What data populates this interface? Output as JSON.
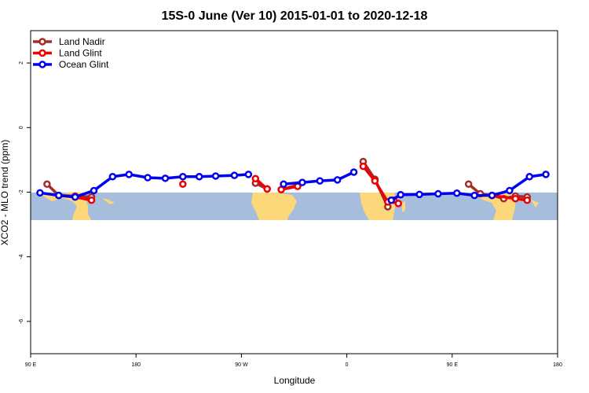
{
  "chart_data": {
    "type": "line",
    "title": "15S-0 June (Ver 10)   2015-01-01 to 2020-12-18",
    "xlabel": "Longitude",
    "ylabel": "XCO2 - MLO trend (ppm)",
    "xlim": [
      90,
      540
    ],
    "ylim": [
      -7,
      3
    ],
    "xticks": [
      {
        "value": 90,
        "label": "90 E"
      },
      {
        "value": 180,
        "label": "180"
      },
      {
        "value": 270,
        "label": "90 W"
      },
      {
        "value": 360,
        "label": "0"
      },
      {
        "value": 450,
        "label": "90 E"
      },
      {
        "value": 540,
        "label": "180"
      }
    ],
    "yticks": [
      {
        "value": 2,
        "label": "2"
      },
      {
        "value": 0,
        "label": "0"
      },
      {
        "value": -2,
        "label": "-2"
      },
      {
        "value": -4,
        "label": "-4"
      },
      {
        "value": -6,
        "label": "-6"
      }
    ],
    "grid": false,
    "legend_position": "top-left",
    "map_band": {
      "lat_from": -15,
      "lat_to": 0,
      "ocean_color": "#a6bddb",
      "land_color": "#fdd87a"
    },
    "series": [
      {
        "name": "Land Nadir",
        "color": "#a52a2a",
        "segments": [
          [
            [
              104,
              -1.75
            ],
            [
              114,
              -2.1
            ],
            [
              128,
              -2.12
            ],
            [
              142,
              -2.15
            ]
          ],
          [
            [
              282,
              -1.72
            ],
            [
              292,
              -1.9
            ]
          ],
          [
            [
              304,
              -1.92
            ],
            [
              318,
              -1.78
            ]
          ],
          [
            [
              374,
              -1.05
            ],
            [
              384,
              -1.6
            ],
            [
              395,
              -2.45
            ]
          ],
          [
            [
              464,
              -1.75
            ],
            [
              474,
              -2.05
            ],
            [
              484,
              -2.1
            ],
            [
              494,
              -2.2
            ],
            [
              504,
              -2.12
            ],
            [
              514,
              -2.15
            ]
          ]
        ]
      },
      {
        "name": "Land Glint",
        "color": "#ee0000",
        "segments": [
          [
            [
              114,
              -2.1
            ],
            [
              128,
              -2.15
            ],
            [
              142,
              -2.25
            ]
          ],
          [
            [
              220,
              -1.75
            ]
          ],
          [
            [
              282,
              -1.58
            ],
            [
              292,
              -1.9
            ]
          ],
          [
            [
              304,
              -1.92
            ],
            [
              318,
              -1.82
            ]
          ],
          [
            [
              374,
              -1.2
            ],
            [
              384,
              -1.65
            ],
            [
              395,
              -2.3
            ]
          ],
          [
            [
              400,
              -2.25
            ],
            [
              404,
              -2.35
            ]
          ],
          [
            [
              484,
              -2.1
            ],
            [
              504,
              -2.2
            ],
            [
              514,
              -2.25
            ]
          ]
        ]
      },
      {
        "name": "Ocean Glint",
        "color": "#0000ee",
        "segments": [
          [
            [
              98,
              -2.02
            ],
            [
              114,
              -2.1
            ],
            [
              128,
              -2.15
            ],
            [
              144,
              -1.95
            ],
            [
              160,
              -1.52
            ],
            [
              174,
              -1.45
            ],
            [
              190,
              -1.55
            ],
            [
              205,
              -1.57
            ],
            [
              220,
              -1.52
            ],
            [
              234,
              -1.52
            ],
            [
              248,
              -1.5
            ],
            [
              264,
              -1.48
            ],
            [
              276,
              -1.45
            ]
          ],
          [
            [
              306,
              -1.75
            ],
            [
              322,
              -1.7
            ],
            [
              337,
              -1.65
            ],
            [
              352,
              -1.62
            ],
            [
              366,
              -1.38
            ]
          ],
          [
            [
              398,
              -2.25
            ],
            [
              406,
              -2.08
            ],
            [
              422,
              -2.07
            ],
            [
              438,
              -2.05
            ],
            [
              454,
              -2.03
            ],
            [
              469,
              -2.1
            ],
            [
              484,
              -2.1
            ],
            [
              499,
              -1.95
            ],
            [
              516,
              -1.52
            ],
            [
              530,
              -1.45
            ]
          ]
        ]
      }
    ]
  }
}
